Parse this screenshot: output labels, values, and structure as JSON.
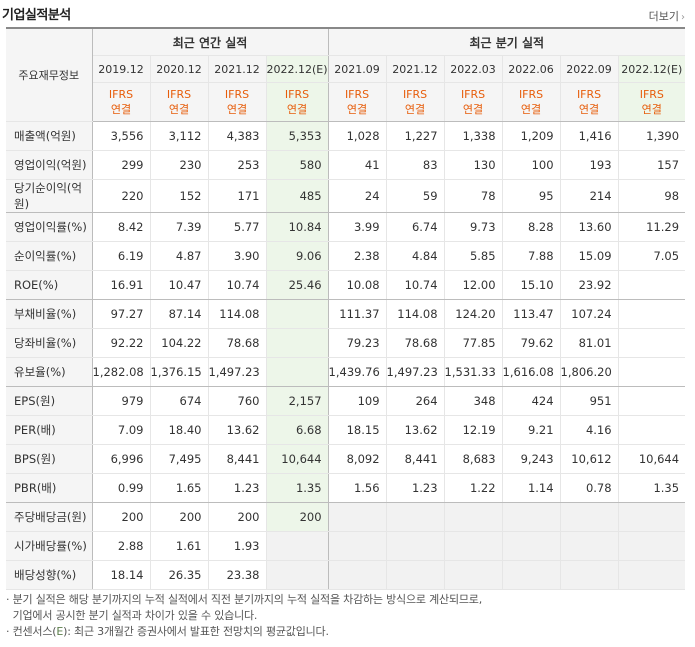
{
  "title": "기업실적분석",
  "more_label": "더보기",
  "annual_group": "최근 연간 실적",
  "quarter_group": "최근 분기 실적",
  "label_header": "주요재무정보",
  "annual_periods": [
    "2019.12",
    "2020.12",
    "2021.12",
    "2022.12(E)"
  ],
  "quarter_periods": [
    "2021.09",
    "2021.12",
    "2022.03",
    "2022.06",
    "2022.09",
    "2022.12(E)"
  ],
  "sub_line1": "IFRS",
  "sub_line2": "연결",
  "rows": [
    {
      "label": "매출액(억원)",
      "values": [
        "3,556",
        "3,112",
        "4,383",
        "5,353",
        "1,028",
        "1,227",
        "1,338",
        "1,209",
        "1,416",
        "1,390"
      ]
    },
    {
      "label": "영업이익(억원)",
      "values": [
        "299",
        "230",
        "253",
        "580",
        "41",
        "83",
        "130",
        "100",
        "193",
        "157"
      ]
    },
    {
      "label": "당기순이익(억원)",
      "values": [
        "220",
        "152",
        "171",
        "485",
        "24",
        "59",
        "78",
        "95",
        "214",
        "98"
      ]
    },
    {
      "label": "영업이익률(%)",
      "values": [
        "8.42",
        "7.39",
        "5.77",
        "10.84",
        "3.99",
        "6.74",
        "9.73",
        "8.28",
        "13.60",
        "11.29"
      ]
    },
    {
      "label": "순이익률(%)",
      "values": [
        "6.19",
        "4.87",
        "3.90",
        "9.06",
        "2.38",
        "4.84",
        "5.85",
        "7.88",
        "15.09",
        "7.05"
      ]
    },
    {
      "label": "ROE(%)",
      "values": [
        "16.91",
        "10.47",
        "10.74",
        "25.46",
        "10.08",
        "10.74",
        "12.00",
        "15.10",
        "23.92",
        ""
      ]
    },
    {
      "label": "부채비율(%)",
      "values": [
        "97.27",
        "87.14",
        "114.08",
        "",
        "111.37",
        "114.08",
        "124.20",
        "113.47",
        "107.24",
        ""
      ]
    },
    {
      "label": "당좌비율(%)",
      "values": [
        "92.22",
        "104.22",
        "78.68",
        "",
        "79.23",
        "78.68",
        "77.85",
        "79.62",
        "81.01",
        ""
      ]
    },
    {
      "label": "유보율(%)",
      "values": [
        "1,282.08",
        "1,376.15",
        "1,497.23",
        "",
        "1,439.76",
        "1,497.23",
        "1,531.33",
        "1,616.08",
        "1,806.20",
        ""
      ]
    },
    {
      "label": "EPS(원)",
      "values": [
        "979",
        "674",
        "760",
        "2,157",
        "109",
        "264",
        "348",
        "424",
        "951",
        ""
      ]
    },
    {
      "label": "PER(배)",
      "values": [
        "7.09",
        "18.40",
        "13.62",
        "6.68",
        "18.15",
        "13.62",
        "12.19",
        "9.21",
        "4.16",
        ""
      ]
    },
    {
      "label": "BPS(원)",
      "values": [
        "6,996",
        "7,495",
        "8,441",
        "10,644",
        "8,092",
        "8,441",
        "8,683",
        "9,243",
        "10,612",
        "10,644"
      ]
    },
    {
      "label": "PBR(배)",
      "values": [
        "0.99",
        "1.65",
        "1.23",
        "1.35",
        "1.56",
        "1.23",
        "1.22",
        "1.14",
        "0.78",
        "1.35"
      ]
    },
    {
      "label": "주당배당금(원)",
      "values": [
        "200",
        "200",
        "200",
        "200",
        "",
        "",
        "",
        "",
        "",
        ""
      ]
    },
    {
      "label": "시가배당률(%)",
      "values": [
        "2.88",
        "1.61",
        "1.93",
        "",
        "",
        "",
        "",
        "",
        "",
        ""
      ]
    },
    {
      "label": "배당성향(%)",
      "values": [
        "18.14",
        "26.35",
        "23.38",
        "",
        "",
        "",
        "",
        "",
        "",
        ""
      ]
    }
  ],
  "notes": {
    "line1": "· 분기 실적은 해당 분기까지의 누적 실적에서 직전 분기까지의 누적 실적을 차감하는 방식으로 계산되므로,",
    "line2": "  기업에서 공시한 분기 실적과 차이가 있을 수 있습니다.",
    "line3a": "· 컨센서스(",
    "line3e": "E",
    "line3b": "): 최근 3개월간 증권사에서 발표한 전망치의 평균값입니다."
  }
}
